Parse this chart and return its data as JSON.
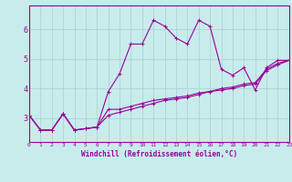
{
  "xlabel": "Windchill (Refroidissement éolien,°C)",
  "background_color": "#c8ecec",
  "grid_color": "#aed4d4",
  "line_color": "#990099",
  "xlim": [
    0,
    23
  ],
  "ylim": [
    2.2,
    6.8
  ],
  "yticks": [
    3,
    4,
    5,
    6
  ],
  "xticks": [
    0,
    1,
    2,
    3,
    4,
    5,
    6,
    7,
    8,
    9,
    10,
    11,
    12,
    13,
    14,
    15,
    16,
    17,
    18,
    19,
    20,
    21,
    22,
    23
  ],
  "series": [
    [
      3.1,
      2.6,
      2.6,
      3.15,
      2.6,
      2.65,
      2.7,
      3.9,
      4.5,
      5.5,
      5.5,
      6.3,
      6.1,
      5.7,
      5.5,
      6.3,
      6.1,
      4.65,
      4.45,
      4.7,
      3.95,
      4.7,
      4.95,
      4.95
    ],
    [
      3.1,
      2.6,
      2.6,
      3.15,
      2.6,
      2.65,
      2.7,
      3.3,
      3.3,
      3.4,
      3.5,
      3.6,
      3.65,
      3.7,
      3.75,
      3.85,
      3.9,
      4.0,
      4.05,
      4.15,
      4.2,
      4.65,
      4.85,
      4.95
    ],
    [
      3.1,
      2.6,
      2.6,
      3.15,
      2.6,
      2.65,
      2.7,
      3.1,
      3.2,
      3.3,
      3.4,
      3.5,
      3.6,
      3.65,
      3.7,
      3.8,
      3.9,
      3.95,
      4.0,
      4.1,
      4.15,
      4.6,
      4.8,
      4.95
    ]
  ]
}
